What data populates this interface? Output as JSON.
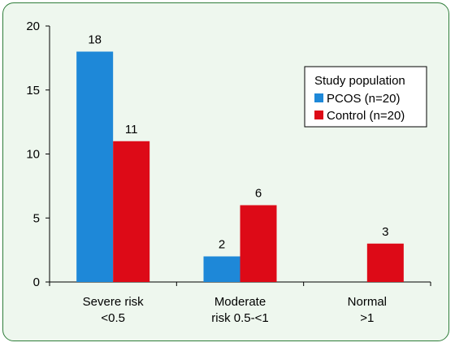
{
  "chart_data": {
    "type": "bar",
    "categories": [
      [
        "Severe risk",
        "<0.5"
      ],
      [
        "Moderate",
        "risk 0.5-<1"
      ],
      [
        "Normal",
        ">1"
      ]
    ],
    "series": [
      {
        "name": "PCOS (n=20)",
        "color": "#1e88d8",
        "values": [
          18,
          2,
          null
        ],
        "labels": [
          "18",
          "2",
          ""
        ]
      },
      {
        "name": "Control (n=20)",
        "color": "#dd0a17",
        "values": [
          11,
          6,
          3
        ],
        "labels": [
          "11",
          "6",
          "3"
        ]
      }
    ],
    "ylim": [
      0,
      20
    ],
    "yticks": [
      "0",
      "5",
      "10",
      "15",
      "20"
    ],
    "legend_title": "Study population",
    "legend_position": "top-right",
    "grid": false
  }
}
